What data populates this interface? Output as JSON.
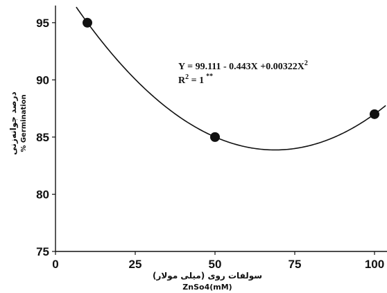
{
  "chart_data": {
    "type": "scatter",
    "x": [
      10,
      50,
      100
    ],
    "y": [
      95,
      85,
      87
    ],
    "xlim": [
      0,
      100
    ],
    "ylim": [
      75,
      96.5
    ],
    "xticks": [
      "0",
      "25",
      "50",
      "75",
      "100"
    ],
    "yticks": [
      "75",
      "80",
      "85",
      "90",
      "95"
    ],
    "xlabel_fa": "سولفات روی (میلی مولار)",
    "xlabel_en": "ZnSo4(mM)",
    "ylabel_fa": "درصد جوانه‌زنی",
    "ylabel_en": "% Germination",
    "fit": {
      "type": "quadratic",
      "intercept": 99.111,
      "linear": -0.443,
      "quadratic": 0.00322,
      "equation": "Y = 99.111 - 0.443X +0.00322X",
      "eq_sup": "2",
      "r2_label": "R",
      "r2_sup": "2",
      "r2_value": " = 1",
      "r2_mark": "**"
    },
    "grid": false
  }
}
